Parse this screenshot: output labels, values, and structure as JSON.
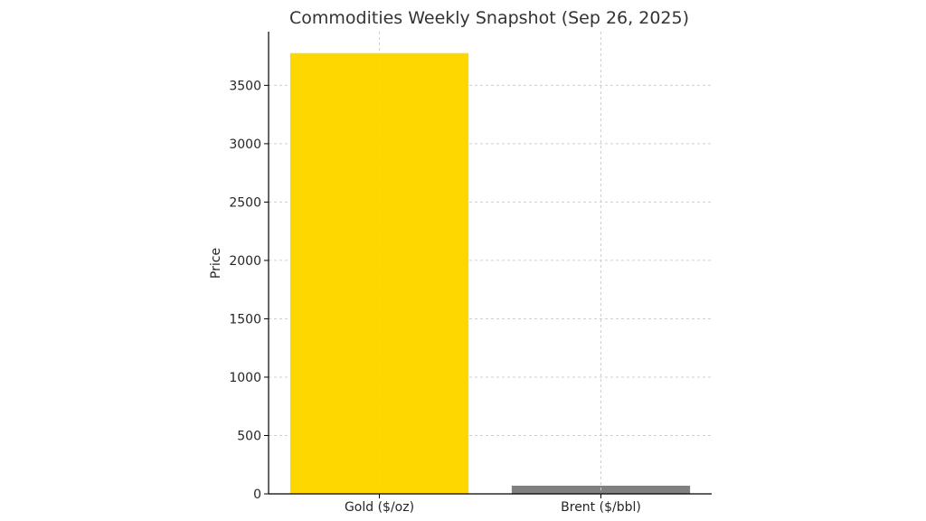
{
  "chart_data": {
    "type": "bar",
    "title": "Commodities Weekly Snapshot (Sep 26, 2025)",
    "xlabel": "",
    "ylabel": "Price",
    "categories": [
      "Gold ($/oz)",
      "Brent ($/bbl)"
    ],
    "values": [
      3776,
      70
    ],
    "bar_colors": [
      "#FFD700",
      "#808080"
    ],
    "ylim": [
      0,
      3960
    ],
    "yticks": [
      0,
      500,
      1000,
      1500,
      2000,
      2500,
      3000,
      3500
    ],
    "grid": true,
    "legend": "none"
  }
}
